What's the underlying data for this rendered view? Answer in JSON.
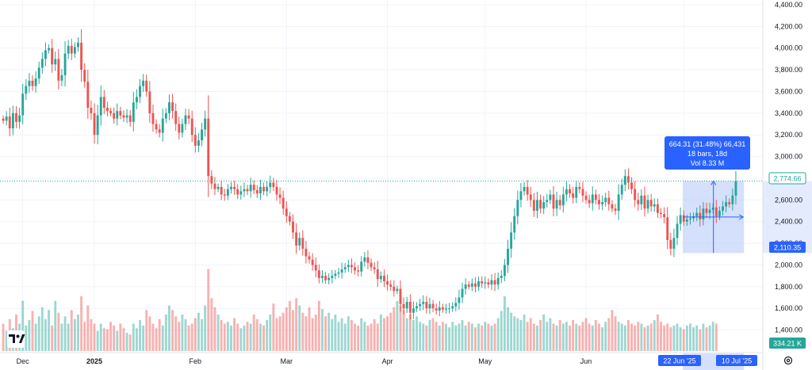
{
  "chart_data": {
    "type": "candlestick",
    "ylim": [
      1280,
      4400
    ],
    "y_ticks": [
      "1,400.00",
      "1,600.00",
      "1,800.00",
      "2,000.00",
      "2,200.00",
      "2,400.00",
      "2,600.00",
      "2,800.00",
      "3,000.00",
      "3,200.00",
      "3,400.00",
      "3,600.00",
      "3,800.00",
      "4,000.00",
      "4,200.00",
      "4,400.00"
    ],
    "y_tick_values": [
      1400,
      1600,
      1800,
      2000,
      2200,
      2400,
      2600,
      2800,
      3000,
      3200,
      3400,
      3600,
      3800,
      4000,
      4200,
      4400
    ],
    "x_labels": [
      {
        "label": "Dec",
        "bar": 6,
        "bold": false
      },
      {
        "label": "2025",
        "bar": 28,
        "bold": true
      },
      {
        "label": "Feb",
        "bar": 59,
        "bold": false
      },
      {
        "label": "Mar",
        "bar": 87,
        "bold": false
      },
      {
        "label": "Apr",
        "bar": 118,
        "bold": false
      },
      {
        "label": "May",
        "bar": 148,
        "bold": false
      },
      {
        "label": "Jun",
        "bar": 179,
        "bold": false
      },
      {
        "label": "Jul",
        "bar": 209,
        "bold": false
      }
    ],
    "last_price_label": "2,774.66",
    "last_price_value": 2774.66,
    "low_price_label": "2,110.35",
    "low_price_value": 2110.35,
    "volume_label": "334.21 K",
    "up_color": "#26a69a",
    "down_color": "#ef5350",
    "closes": [
      3330,
      3370,
      3260,
      3400,
      3320,
      3380,
      3580,
      3650,
      3700,
      3650,
      3720,
      3820,
      3900,
      3980,
      4000,
      3850,
      3900,
      3700,
      3750,
      3950,
      4020,
      3950,
      4010,
      4050,
      3800,
      3690,
      3450,
      3400,
      3200,
      3380,
      3550,
      3450,
      3420,
      3400,
      3350,
      3420,
      3380,
      3360,
      3380,
      3320,
      3500,
      3550,
      3650,
      3700,
      3600,
      3400,
      3300,
      3250,
      3220,
      3350,
      3400,
      3500,
      3420,
      3300,
      3220,
      3300,
      3380,
      3350,
      3200,
      3100,
      3150,
      3250,
      3350,
      2820,
      2750,
      2700,
      2720,
      2650,
      2640,
      2700,
      2720,
      2700,
      2650,
      2680,
      2700,
      2680,
      2740,
      2690,
      2660,
      2720,
      2680,
      2720,
      2760,
      2720,
      2650,
      2620,
      2520,
      2450,
      2400,
      2300,
      2180,
      2250,
      2150,
      2080,
      2050,
      2000,
      1950,
      1880,
      1900,
      1860,
      1880,
      1900,
      1920,
      1930,
      1960,
      1980,
      2000,
      1980,
      1950,
      1940,
      2030,
      2070,
      2020,
      1980,
      1960,
      1870,
      1900,
      1850,
      1820,
      1800,
      1760,
      1780,
      1640,
      1600,
      1660,
      1560,
      1600,
      1620,
      1640,
      1660,
      1600,
      1640,
      1600,
      1580,
      1610,
      1590,
      1600,
      1600,
      1620,
      1650,
      1700,
      1780,
      1820,
      1800,
      1830,
      1800,
      1850,
      1830,
      1840,
      1820,
      1860,
      1820,
      1880,
      1900,
      2000,
      2150,
      2300,
      2450,
      2600,
      2680,
      2720,
      2650,
      2600,
      2500,
      2600,
      2520,
      2580,
      2600,
      2650,
      2520,
      2600,
      2550,
      2650,
      2700,
      2660,
      2620,
      2720,
      2700,
      2640,
      2600,
      2570,
      2650,
      2600,
      2560,
      2580,
      2620,
      2560,
      2520,
      2500,
      2650,
      2740,
      2820,
      2760,
      2700,
      2600,
      2560,
      2640,
      2520,
      2600,
      2540,
      2560,
      2480,
      2470,
      2440,
      2230,
      2150,
      2250,
      2380,
      2460,
      2400,
      2420,
      2430,
      2450,
      2480,
      2420,
      2520,
      2480,
      2510,
      2530,
      2450,
      2500,
      2540,
      2580,
      2560,
      2640,
      2774.66
    ],
    "volumes": [
      0.3,
      0.22,
      0.35,
      0.25,
      0.4,
      0.3,
      0.55,
      0.28,
      0.34,
      0.44,
      0.3,
      0.38,
      0.48,
      0.35,
      0.45,
      0.28,
      0.55,
      0.42,
      0.3,
      0.38,
      0.3,
      0.45,
      0.35,
      0.4,
      0.6,
      0.32,
      0.5,
      0.35,
      0.3,
      0.22,
      0.3,
      0.25,
      0.24,
      0.32,
      0.28,
      0.22,
      0.3,
      0.25,
      0.2,
      0.18,
      0.3,
      0.25,
      0.34,
      0.28,
      0.45,
      0.38,
      0.3,
      0.25,
      0.35,
      0.28,
      0.4,
      0.5,
      0.45,
      0.38,
      0.32,
      0.4,
      0.35,
      0.28,
      0.3,
      0.36,
      0.42,
      0.35,
      0.5,
      0.9,
      0.58,
      0.48,
      0.4,
      0.34,
      0.3,
      0.32,
      0.28,
      0.36,
      0.3,
      0.25,
      0.28,
      0.32,
      0.3,
      0.4,
      0.35,
      0.3,
      0.28,
      0.34,
      0.4,
      0.52,
      0.36,
      0.38,
      0.42,
      0.48,
      0.55,
      0.45,
      0.58,
      0.5,
      0.42,
      0.38,
      0.48,
      0.36,
      0.4,
      0.55,
      0.46,
      0.38,
      0.42,
      0.35,
      0.4,
      0.32,
      0.36,
      0.3,
      0.38,
      0.34,
      0.3,
      0.28,
      0.36,
      0.32,
      0.28,
      0.3,
      0.35,
      0.3,
      0.4,
      0.36,
      0.38,
      0.42,
      0.48,
      0.55,
      0.5,
      0.45,
      0.36,
      0.4,
      0.34,
      0.38,
      0.32,
      0.3,
      0.28,
      0.34,
      0.36,
      0.32,
      0.28,
      0.32,
      0.3,
      0.26,
      0.32,
      0.28,
      0.3,
      0.34,
      0.28,
      0.32,
      0.3,
      0.26,
      0.3,
      0.28,
      0.32,
      0.3,
      0.28,
      0.3,
      0.36,
      0.44,
      0.6,
      0.48,
      0.42,
      0.38,
      0.36,
      0.34,
      0.4,
      0.32,
      0.36,
      0.3,
      0.28,
      0.34,
      0.4,
      0.32,
      0.36,
      0.3,
      0.28,
      0.34,
      0.3,
      0.32,
      0.28,
      0.34,
      0.3,
      0.28,
      0.32,
      0.36,
      0.3,
      0.28,
      0.34,
      0.3,
      0.26,
      0.32,
      0.36,
      0.45,
      0.38,
      0.32,
      0.3,
      0.28,
      0.34,
      0.3,
      0.28,
      0.32,
      0.3,
      0.26,
      0.28,
      0.3,
      0.34,
      0.4,
      0.32,
      0.28,
      0.3,
      0.26,
      0.28,
      0.3,
      0.26,
      0.24,
      0.28,
      0.3,
      0.26,
      0.28,
      0.24,
      0.3,
      0.26,
      0.28,
      0.32,
      0.3
    ],
    "measure": {
      "line1": "664.31 (31.48%) 66,431",
      "line2": "18 bars, 18d",
      "line3": "Vol 8.33 M",
      "start_bar": 209,
      "end_bar": 227,
      "low": 2110.35,
      "high": 2774.66
    },
    "date_labels": {
      "start": "22 Jun '25",
      "end": "10 Jul '25"
    }
  },
  "icons": {
    "logo": "tradingview-logo-icon",
    "settings": "settings-gear-icon"
  },
  "colors": {
    "accent": "#2962ff",
    "measure_fill": "#b3c6f9",
    "grid": "#f0f3fa",
    "axis_text": "#131722"
  }
}
